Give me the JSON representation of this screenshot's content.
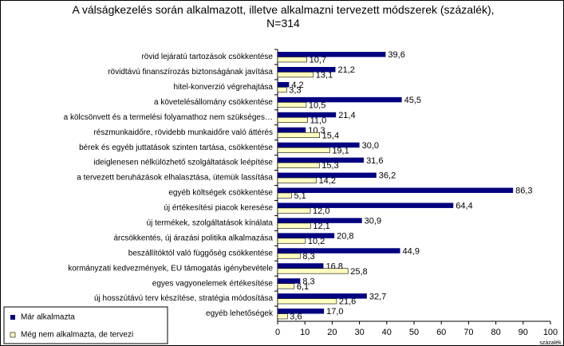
{
  "chart_data": {
    "type": "hbar",
    "title": "A válságkezelés során alkalmazott, illetve alkalmazni tervezett módszerek (százalék), N=314",
    "x_label": "százalék",
    "categories": [
      "rövid lejáratú tartozások csökkentése",
      "rövidtávú finanszírozás biztonságának javítása",
      "hitel-konverzió végrehajtása",
      "a követelésállomány csökkentése",
      "a kölcsönvett és a termelési folyamathoz nem szükséges…",
      "részmunkaidőre, rövidebb munkaidőre való áttérés",
      "bérek és egyéb juttatások szinten tartása, csökkentése",
      "ideiglenesen nélkülözhető szolgáltatások leépítése",
      "a tervezett beruházások elhalasztása, ütemük lassítása",
      "egyéb költségek csökkentése",
      "új értékesítési piacok keresése",
      "új termékek, szolgáltatások kínálata",
      "árcsökkentés, új árazási politika alkalmazása",
      "beszállítóktól való függőség csökkentése",
      "kormányzati kedvezmények, EU támogatás igénybevétele",
      "egyes vagyonelemek értékesítése",
      "új hosszútávú terv készítése, stratégia módosítása",
      "egyéb lehetőségek"
    ],
    "series": [
      {
        "name": "Már alkalmazta",
        "color": "#000080",
        "values": [
          39.6,
          21.2,
          4.2,
          45.5,
          21.4,
          10.3,
          30.0,
          31.6,
          36.2,
          86.3,
          64.4,
          30.9,
          20.8,
          44.9,
          16.8,
          8.3,
          32.7,
          17.0
        ],
        "value_labels": [
          "39,6",
          "21,2",
          "4,2",
          "45,5",
          "21,4",
          "10,3",
          "30,0",
          "31,6",
          "36,2",
          "86,3",
          "64,4",
          "30,9",
          "20,8",
          "44,9",
          "16,8",
          "8,3",
          "32,7",
          "17,0"
        ]
      },
      {
        "name": "Még nem alkalmazta, de tervezi",
        "color": "#ffffc0",
        "values": [
          10.7,
          13.1,
          3.3,
          10.5,
          11.0,
          15.4,
          19.1,
          15.3,
          14.2,
          5.1,
          12.0,
          12.1,
          10.2,
          8.3,
          25.8,
          6.1,
          21.6,
          3.6
        ],
        "value_labels": [
          "10,7",
          "13,1",
          "3,3",
          "10,5",
          "11,0",
          "15,4",
          "19,1",
          "15,3",
          "14,2",
          "5,1",
          "12,0",
          "12,1",
          "10,2",
          "8,3",
          "25,8",
          "6,1",
          "21,6",
          "3,6"
        ]
      }
    ],
    "xlim": [
      0,
      100
    ],
    "xticks": [
      0,
      10,
      20,
      30,
      40,
      50,
      60,
      70,
      80,
      90,
      100
    ]
  }
}
